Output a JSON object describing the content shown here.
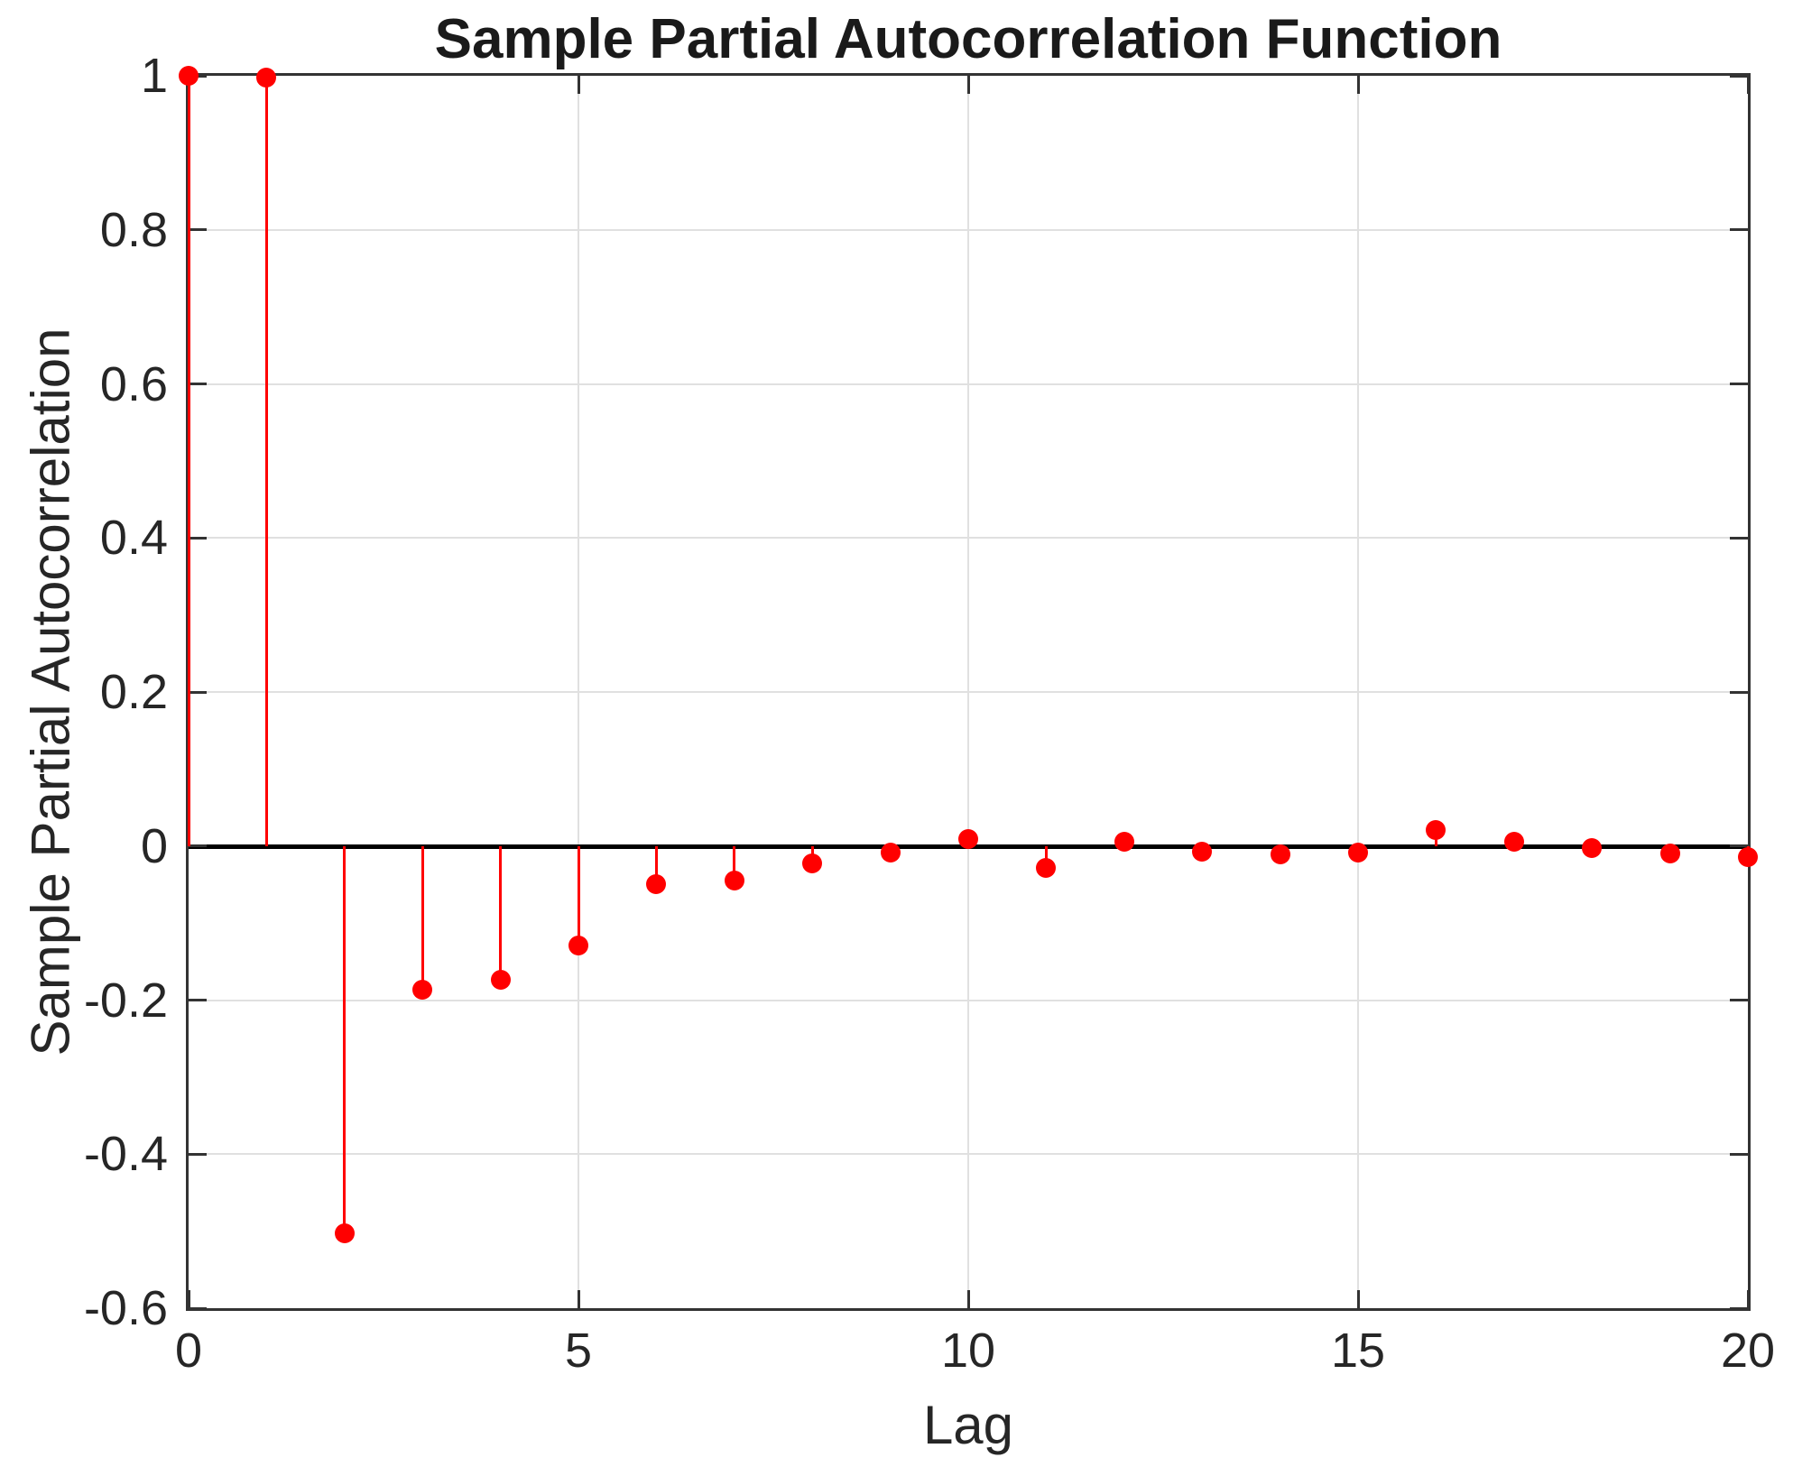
{
  "chart_data": {
    "type": "stem",
    "title": "Sample Partial Autocorrelation Function",
    "xlabel": "Lag",
    "ylabel": "Sample Partial Autocorrelation",
    "x": [
      0,
      1,
      2,
      3,
      4,
      5,
      6,
      7,
      8,
      9,
      10,
      11,
      12,
      13,
      14,
      15,
      16,
      17,
      18,
      19,
      20
    ],
    "values": [
      1.0,
      0.998,
      -0.503,
      -0.187,
      -0.174,
      -0.129,
      -0.049,
      -0.045,
      -0.023,
      -0.009,
      0.009,
      -0.028,
      0.006,
      -0.007,
      -0.011,
      -0.008,
      0.021,
      0.006,
      -0.003,
      -0.01,
      -0.014
    ],
    "xlim": [
      0,
      20
    ],
    "ylim": [
      -0.6,
      1
    ],
    "xticks": {
      "values": [
        0,
        5,
        10,
        15,
        20
      ],
      "labels": [
        "0",
        "5",
        "10",
        "15",
        "20"
      ]
    },
    "yticks": {
      "values": [
        1,
        0.8,
        0.6,
        0.4,
        0.2,
        0,
        -0.2,
        -0.4,
        -0.6
      ],
      "labels": [
        "1",
        "0.8",
        "0.6",
        "0.4",
        "0.2",
        "0",
        "-0.2",
        "-0.4",
        "-0.6"
      ]
    },
    "grid": true,
    "legend": null,
    "marker": "filled-circle",
    "colors": {
      "stem": "#ff0000",
      "marker": "#ff0000",
      "baseline": "#000000",
      "axis": "#333333",
      "grid": "#e0e0e0",
      "text": "#262626"
    }
  }
}
